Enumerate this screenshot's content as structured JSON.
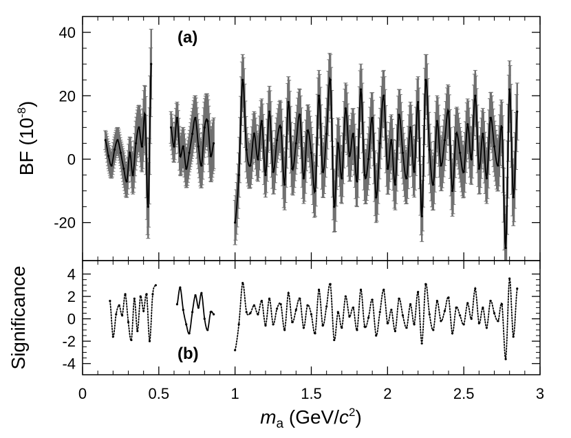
{
  "chart_data": [
    {
      "panel_label": "(a)",
      "type": "line",
      "ylabel": "BF (10",
      "ylabel_exponent": "-8",
      "ylabel_close": ")",
      "xlim": [
        0,
        3
      ],
      "ylim": [
        -32,
        45
      ],
      "yticks": [
        -20,
        0,
        20,
        40
      ],
      "ytick_labels": [
        "-20",
        "0",
        "20",
        "40"
      ],
      "colors": {
        "central": "#000000",
        "error_band": "#707070"
      },
      "segments": [
        {
          "x": [
            0.15,
            0.17,
            0.19,
            0.21,
            0.23,
            0.25,
            0.27,
            0.29,
            0.31,
            0.33,
            0.35,
            0.37,
            0.39,
            0.41,
            0.43,
            0.45
          ],
          "y": [
            6,
            1,
            -2,
            3,
            6,
            2,
            -3,
            -7,
            2,
            -5,
            5,
            10,
            4,
            14,
            -15,
            30
          ],
          "err": [
            3,
            4,
            4,
            4,
            4,
            4,
            5,
            5,
            5,
            6,
            7,
            7,
            8,
            9,
            10,
            11
          ]
        },
        {
          "x": [
            0.58,
            0.6,
            0.62,
            0.64,
            0.66,
            0.68,
            0.7,
            0.72,
            0.74,
            0.76,
            0.78,
            0.8,
            0.82,
            0.84,
            0.86
          ],
          "y": [
            10,
            4,
            13,
            1,
            4,
            -3,
            2,
            8,
            13,
            4,
            -2,
            10,
            12,
            1,
            5
          ],
          "err": [
            5,
            5,
            5,
            6,
            6,
            6,
            6,
            7,
            7,
            7,
            7,
            8,
            8,
            8,
            8
          ]
        },
        {
          "x": [
            1.0,
            1.025,
            1.05,
            1.075,
            1.1,
            1.125,
            1.15,
            1.175,
            1.2,
            1.225,
            1.25,
            1.275,
            1.3,
            1.325,
            1.35,
            1.375,
            1.4,
            1.425,
            1.45,
            1.475,
            1.5,
            1.525,
            1.55,
            1.575,
            1.6,
            1.625,
            1.65,
            1.675,
            1.7,
            1.725,
            1.75,
            1.775,
            1.8,
            1.825,
            1.85,
            1.875,
            1.9,
            1.925,
            1.95,
            1.975,
            2.0,
            2.025,
            2.05,
            2.075,
            2.1,
            2.125,
            2.15,
            2.175,
            2.2,
            2.225,
            2.25,
            2.275,
            2.3,
            2.325,
            2.35,
            2.375,
            2.4,
            2.425,
            2.45,
            2.475,
            2.5,
            2.525,
            2.55,
            2.575,
            2.6,
            2.625,
            2.65,
            2.675,
            2.7,
            2.725,
            2.75,
            2.775,
            2.8,
            2.825,
            2.85
          ],
          "y": [
            -20,
            -5,
            25,
            3,
            -2,
            8,
            0,
            12,
            -5,
            15,
            -4,
            6,
            10,
            -8,
            18,
            -3,
            5,
            14,
            -6,
            9,
            2,
            -10,
            20,
            -4,
            8,
            25,
            -15,
            5,
            -6,
            16,
            1,
            8,
            -7,
            22,
            -5,
            0,
            13,
            -12,
            5,
            20,
            -3,
            6,
            -8,
            14,
            2,
            -6,
            10,
            -4,
            18,
            -18,
            25,
            3,
            -8,
            12,
            -2,
            6,
            15,
            -10,
            8,
            2,
            -4,
            11,
            0,
            20,
            -3,
            8,
            -6,
            13,
            4,
            -2,
            10,
            -28,
            22,
            -12,
            15
          ],
          "err": [
            7,
            7,
            8,
            7,
            7,
            7,
            7,
            7,
            7,
            8,
            7,
            7,
            8,
            8,
            8,
            8,
            8,
            8,
            8,
            8,
            8,
            8,
            8,
            8,
            8,
            8,
            8,
            8,
            8,
            8,
            8,
            8,
            8,
            8,
            8,
            8,
            8,
            8,
            8,
            8,
            8,
            8,
            8,
            8,
            8,
            8,
            8,
            8,
            8,
            8,
            8,
            8,
            8,
            8,
            8,
            8,
            8,
            8,
            8,
            8,
            8,
            8,
            8,
            8,
            8,
            8,
            8,
            8,
            8,
            8,
            8,
            9,
            9,
            9,
            9
          ]
        }
      ]
    },
    {
      "panel_label": "(b)",
      "type": "line",
      "ylabel": "Significance",
      "xlabel_symbol": "m",
      "xlabel_subscript": "a",
      "xlabel_unit_open": "(GeV/",
      "xlabel_unit_c": "c",
      "xlabel_unit_power": "2",
      "xlabel_unit_close": ")",
      "xlim": [
        0,
        3
      ],
      "ylim": [
        -5,
        5.2
      ],
      "xticks": [
        0,
        0.5,
        1,
        1.5,
        2,
        2.5,
        3
      ],
      "xtick_labels": [
        "0",
        "0.5",
        "1",
        "1.5",
        "2",
        "2.5",
        "3"
      ],
      "yticks": [
        -4,
        -2,
        0,
        2,
        4
      ],
      "ytick_labels": [
        "-4",
        "-2",
        "0",
        "2",
        "4"
      ],
      "segments": [
        {
          "x": [
            0.18,
            0.2,
            0.22,
            0.24,
            0.26,
            0.28,
            0.3,
            0.32,
            0.34,
            0.36,
            0.38,
            0.4,
            0.42,
            0.44,
            0.46,
            0.48
          ],
          "y": [
            1.6,
            -1.6,
            0.4,
            1.2,
            0.3,
            2.2,
            -0.3,
            -1.9,
            1.8,
            -1.1,
            2.0,
            0.7,
            2.2,
            -2.0,
            2.2,
            3.0
          ],
          "style": "dotted"
        },
        {
          "x": [
            0.62,
            0.64,
            0.66,
            0.68,
            0.7,
            0.72,
            0.74,
            0.76,
            0.78,
            0.8,
            0.82,
            0.84,
            0.86
          ],
          "y": [
            1.3,
            2.8,
            0.8,
            -0.5,
            -1.3,
            0.6,
            2.1,
            1.0,
            2.3,
            0.0,
            -1.0,
            0.6,
            0.4
          ],
          "style": "solid"
        },
        {
          "x": [
            1.0,
            1.025,
            1.05,
            1.075,
            1.1,
            1.125,
            1.15,
            1.175,
            1.2,
            1.225,
            1.25,
            1.275,
            1.3,
            1.325,
            1.35,
            1.375,
            1.4,
            1.425,
            1.45,
            1.475,
            1.5,
            1.525,
            1.55,
            1.575,
            1.6,
            1.625,
            1.65,
            1.675,
            1.7,
            1.725,
            1.75,
            1.775,
            1.8,
            1.825,
            1.85,
            1.875,
            1.9,
            1.925,
            1.95,
            1.975,
            2.0,
            2.025,
            2.05,
            2.075,
            2.1,
            2.125,
            2.15,
            2.175,
            2.2,
            2.225,
            2.25,
            2.275,
            2.3,
            2.325,
            2.35,
            2.375,
            2.4,
            2.425,
            2.45,
            2.475,
            2.5,
            2.525,
            2.55,
            2.575,
            2.6,
            2.625,
            2.65,
            2.675,
            2.7,
            2.725,
            2.75,
            2.775,
            2.8,
            2.825,
            2.85
          ],
          "y": [
            -2.8,
            -0.5,
            3.2,
            0.6,
            0.5,
            1.2,
            0.4,
            1.6,
            -0.6,
            1.8,
            -0.5,
            0.9,
            1.3,
            -1.0,
            2.3,
            -0.3,
            0.8,
            1.8,
            -0.8,
            1.2,
            0.4,
            -1.3,
            2.6,
            -0.6,
            1.1,
            3.1,
            -1.9,
            0.6,
            -0.8,
            2.0,
            0.2,
            1.0,
            -1.0,
            2.6,
            -0.7,
            0.1,
            1.7,
            -1.5,
            0.6,
            2.6,
            -0.4,
            0.8,
            -1.1,
            1.8,
            0.3,
            -0.8,
            1.3,
            -0.5,
            2.4,
            -2.2,
            3.1,
            0.4,
            -1.0,
            1.6,
            -0.2,
            0.7,
            1.9,
            -1.3,
            1.0,
            0.3,
            -0.5,
            1.4,
            0.0,
            2.7,
            -0.4,
            1.0,
            -0.8,
            1.6,
            0.5,
            -0.2,
            1.3,
            -3.6,
            3.6,
            -1.6,
            2.7
          ],
          "style": "dotted"
        }
      ]
    }
  ]
}
